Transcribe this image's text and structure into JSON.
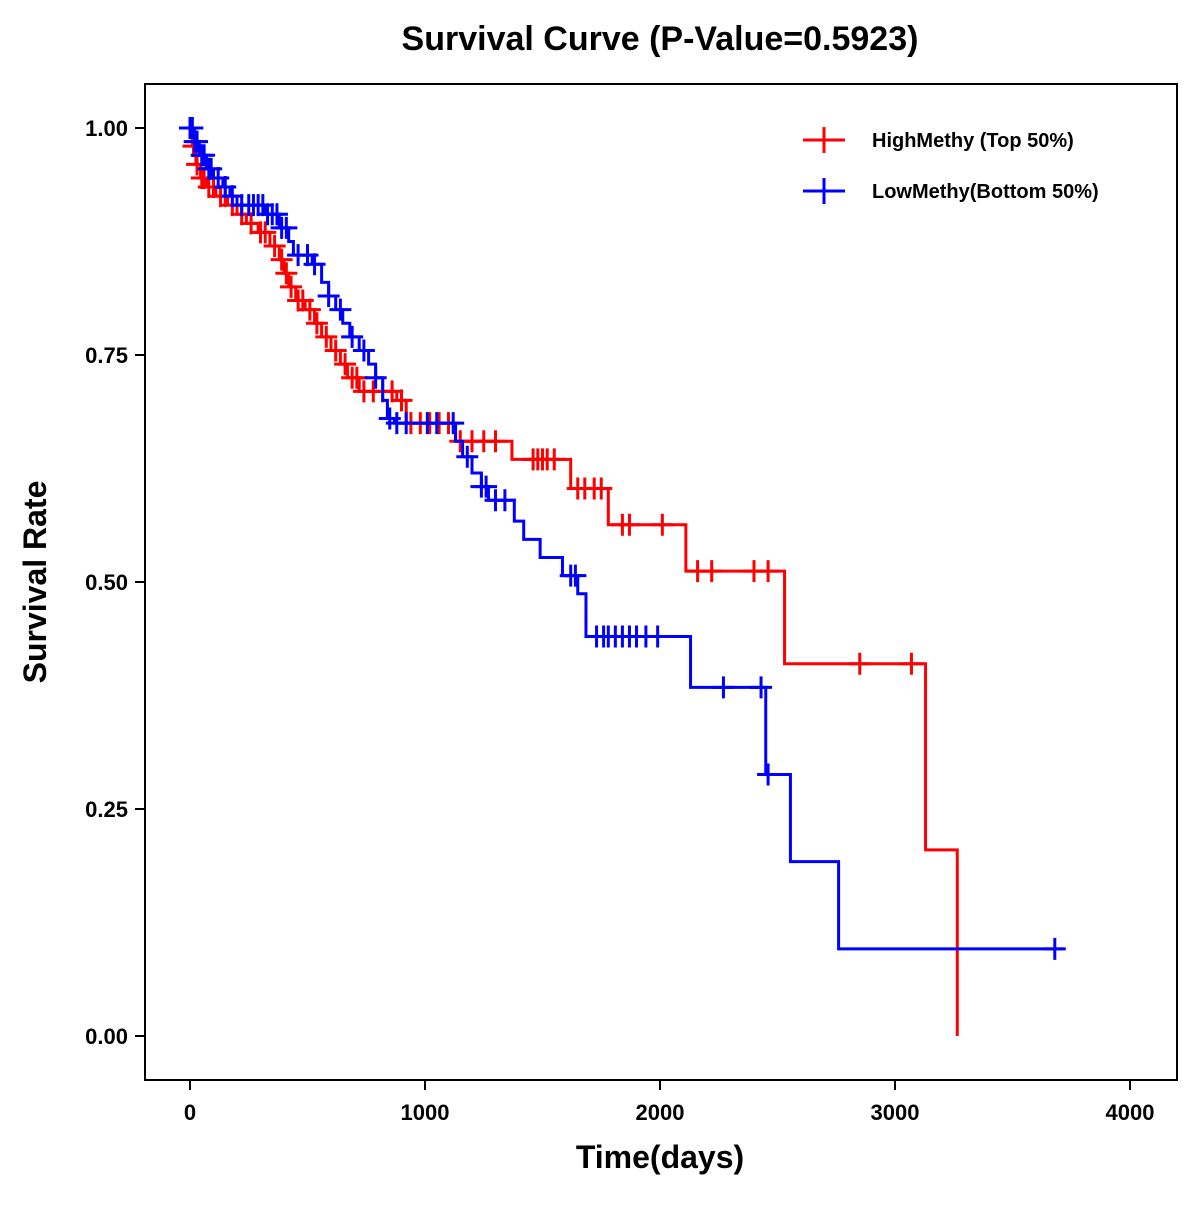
{
  "chart_data": {
    "type": "line",
    "subtype": "kaplan-meier step",
    "title": "Survival Curve (P-Value=0.5923)",
    "xlabel": "Time(days)",
    "ylabel": "Survival Rate",
    "xlim": [
      -190,
      4200
    ],
    "ylim": [
      -0.05,
      1.05
    ],
    "xticks": [
      0,
      1000,
      2000,
      3000,
      4000
    ],
    "xtick_labels": [
      "0",
      "1000",
      "2000",
      "3000",
      "4000"
    ],
    "yticks": [
      0,
      0.25,
      0.5,
      0.75,
      1.0
    ],
    "ytick_labels": [
      "0.00",
      "0.25",
      "0.50",
      "0.75",
      "1.00"
    ],
    "grid": false,
    "legend_position": "top-right",
    "series": [
      {
        "name": "HighMethy (Top 50%)",
        "color": "#ff0000",
        "steps": [
          [
            0,
            1.0
          ],
          [
            10,
            0.98
          ],
          [
            25,
            0.96
          ],
          [
            45,
            0.945
          ],
          [
            70,
            0.935
          ],
          [
            110,
            0.925
          ],
          [
            160,
            0.915
          ],
          [
            200,
            0.905
          ],
          [
            240,
            0.895
          ],
          [
            290,
            0.885
          ],
          [
            340,
            0.87
          ],
          [
            380,
            0.855
          ],
          [
            400,
            0.84
          ],
          [
            420,
            0.825
          ],
          [
            450,
            0.81
          ],
          [
            490,
            0.8
          ],
          [
            530,
            0.785
          ],
          [
            560,
            0.77
          ],
          [
            600,
            0.755
          ],
          [
            640,
            0.74
          ],
          [
            670,
            0.725
          ],
          [
            720,
            0.71
          ],
          [
            880,
            0.7
          ],
          [
            920,
            0.675
          ],
          [
            1130,
            0.655
          ],
          [
            1370,
            0.635
          ],
          [
            1620,
            0.603
          ],
          [
            1780,
            0.563
          ],
          [
            2110,
            0.512
          ],
          [
            2530,
            0.41
          ],
          [
            3130,
            0.205
          ],
          [
            3265,
            0.0
          ]
        ],
        "end_time": 3265,
        "censored": [
          15,
          30,
          50,
          60,
          80,
          100,
          130,
          150,
          180,
          220,
          260,
          300,
          320,
          360,
          390,
          410,
          430,
          460,
          480,
          510,
          540,
          580,
          620,
          660,
          690,
          710,
          740,
          780,
          820,
          860,
          900,
          940,
          980,
          1020,
          1060,
          1100,
          1150,
          1200,
          1250,
          1300,
          1460,
          1480,
          1500,
          1520,
          1550,
          1650,
          1680,
          1720,
          1750,
          1840,
          1870,
          2010,
          2160,
          2220,
          2400,
          2460,
          2850,
          3070
        ]
      },
      {
        "name": "LowMethy(Bottom 50%)",
        "color": "#0000ff",
        "steps": [
          [
            0,
            1.0
          ],
          [
            20,
            0.985
          ],
          [
            40,
            0.97
          ],
          [
            70,
            0.955
          ],
          [
            100,
            0.945
          ],
          [
            140,
            0.935
          ],
          [
            170,
            0.925
          ],
          [
            200,
            0.915
          ],
          [
            320,
            0.905
          ],
          [
            380,
            0.89
          ],
          [
            420,
            0.875
          ],
          [
            440,
            0.86
          ],
          [
            520,
            0.85
          ],
          [
            560,
            0.83
          ],
          [
            590,
            0.815
          ],
          [
            620,
            0.8
          ],
          [
            650,
            0.785
          ],
          [
            680,
            0.77
          ],
          [
            720,
            0.755
          ],
          [
            760,
            0.74
          ],
          [
            790,
            0.725
          ],
          [
            820,
            0.7
          ],
          [
            840,
            0.68
          ],
          [
            870,
            0.675
          ],
          [
            1130,
            0.655
          ],
          [
            1160,
            0.638
          ],
          [
            1200,
            0.62
          ],
          [
            1240,
            0.605
          ],
          [
            1270,
            0.59
          ],
          [
            1380,
            0.567
          ],
          [
            1420,
            0.547
          ],
          [
            1490,
            0.527
          ],
          [
            1585,
            0.507
          ],
          [
            1650,
            0.487
          ],
          [
            1685,
            0.44
          ],
          [
            2130,
            0.384
          ],
          [
            2450,
            0.288
          ],
          [
            2555,
            0.192
          ],
          [
            2760,
            0.096
          ]
        ],
        "end_time": 3715,
        "censored": [
          0,
          10,
          20,
          30,
          50,
          60,
          80,
          90,
          120,
          150,
          180,
          220,
          250,
          270,
          290,
          310,
          330,
          350,
          370,
          390,
          410,
          460,
          500,
          530,
          590,
          640,
          690,
          740,
          790,
          850,
          880,
          920,
          1010,
          1050,
          1120,
          1180,
          1240,
          1260,
          1300,
          1340,
          1620,
          1640,
          1730,
          1760,
          1780,
          1810,
          1840,
          1870,
          1900,
          1940,
          1990,
          2270,
          2430,
          2460,
          3680
        ]
      }
    ]
  }
}
